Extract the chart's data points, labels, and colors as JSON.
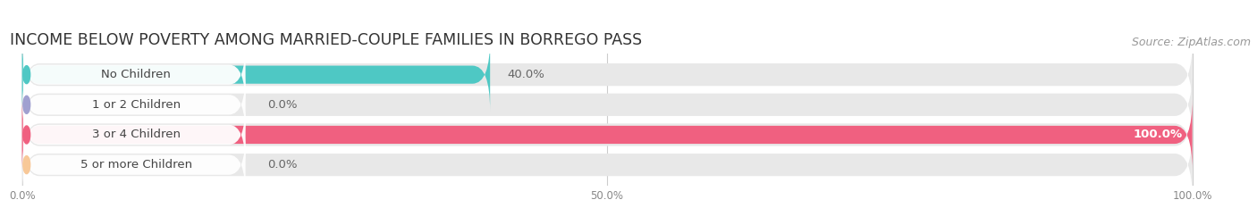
{
  "title": "INCOME BELOW POVERTY AMONG MARRIED-COUPLE FAMILIES IN BORREGO PASS",
  "source": "Source: ZipAtlas.com",
  "categories": [
    "No Children",
    "1 or 2 Children",
    "3 or 4 Children",
    "5 or more Children"
  ],
  "values": [
    40.0,
    0.0,
    100.0,
    0.0
  ],
  "bar_colors": [
    "#4EC8C4",
    "#A0A0D0",
    "#F06080",
    "#F8C898"
  ],
  "background_color": "#ffffff",
  "bar_bg_color": "#e8e8e8",
  "xtick_labels": [
    "0.0%",
    "50.0%",
    "100.0%"
  ],
  "title_fontsize": 12.5,
  "source_fontsize": 9,
  "label_fontsize": 9.5,
  "value_fontsize": 9.5
}
